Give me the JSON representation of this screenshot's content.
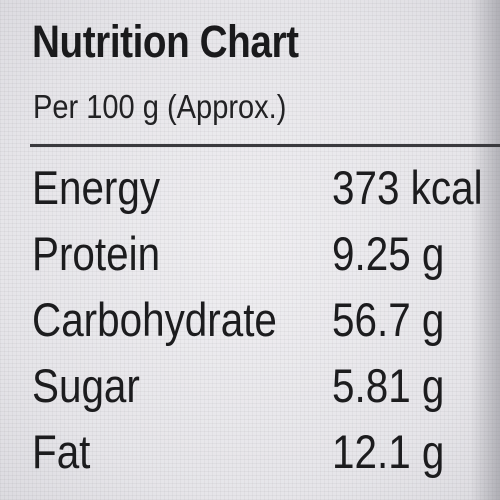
{
  "panel": {
    "title": "Nutrition Chart",
    "subtitle": "Per 100 g (Approx.)"
  },
  "rows": [
    {
      "label": "Energy",
      "value": "373 kcal"
    },
    {
      "label": "Protein",
      "value": "9.25 g"
    },
    {
      "label": "Carbohydrate",
      "value": "56.7 g"
    },
    {
      "label": "Sugar",
      "value": "5.81 g"
    },
    {
      "label": "Fat",
      "value": "12.1 g"
    }
  ]
}
